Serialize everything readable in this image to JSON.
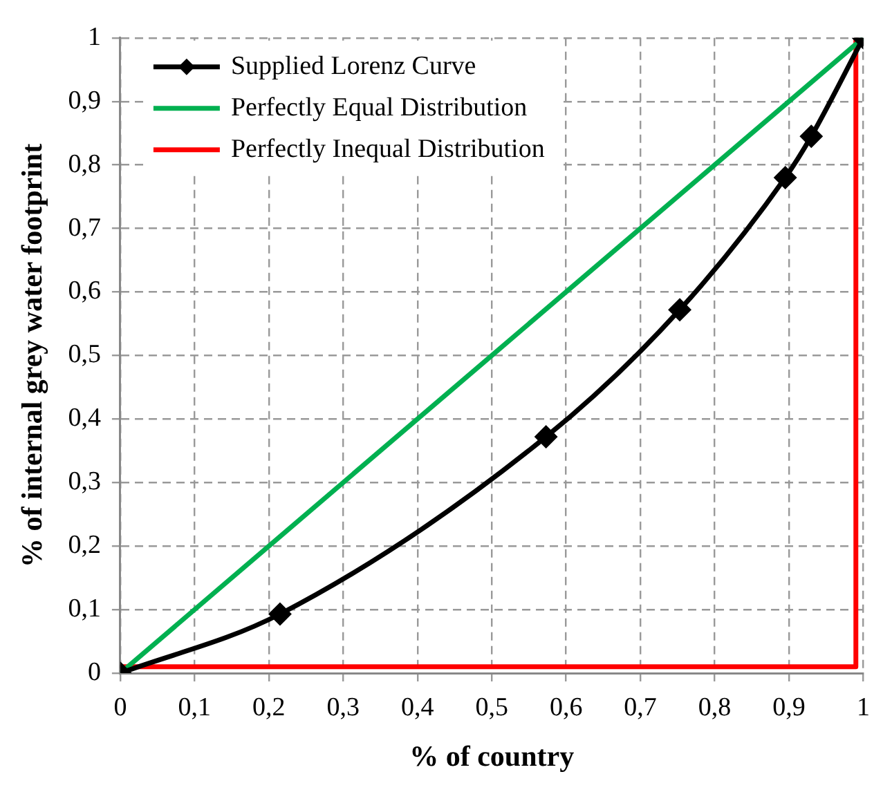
{
  "chart_data": {
    "type": "line",
    "xlabel": "% of country",
    "ylabel": "% of internal grey water footprint",
    "xlim": [
      0,
      1
    ],
    "ylim": [
      0,
      1
    ],
    "xticks": [
      0,
      {
        "value": 0.1,
        "label": "0,1"
      },
      {
        "value": 0.2,
        "label": "0,2"
      },
      {
        "value": 0.3,
        "label": "0,3"
      },
      {
        "value": 0.4,
        "label": "0,4"
      },
      {
        "value": 0.5,
        "label": "0,5"
      },
      {
        "value": 0.6,
        "label": "0,6"
      },
      {
        "value": 0.7,
        "label": "0,7"
      },
      {
        "value": 0.8,
        "label": "0,8"
      },
      {
        "value": 0.9,
        "label": "0,9"
      },
      1
    ],
    "yticks": [
      0,
      {
        "value": 0.1,
        "label": "0,1"
      },
      {
        "value": 0.2,
        "label": "0,2"
      },
      {
        "value": 0.3,
        "label": "0,3"
      },
      {
        "value": 0.4,
        "label": "0,4"
      },
      {
        "value": 0.5,
        "label": "0,5"
      },
      {
        "value": 0.6,
        "label": "0,6"
      },
      {
        "value": 0.7,
        "label": "0,7"
      },
      {
        "value": 0.8,
        "label": "0,8"
      },
      {
        "value": 0.9,
        "label": "0,9"
      },
      1
    ],
    "grid": true,
    "legend": "top left",
    "line_style": "solid",
    "series": [
      {
        "name": "Supplied Lorenz Curve",
        "color": "#000000",
        "marker": "diamond",
        "x": [
          0,
          0.215,
          0.573,
          0.753,
          0.895,
          0.93,
          1
        ],
        "values": [
          0,
          0.093,
          0.372,
          0.572,
          0.78,
          0.845,
          1
        ]
      },
      {
        "name": "Perfectly Equal Distribution",
        "color": "#00b050",
        "marker": "none",
        "x": [
          0,
          1
        ],
        "values": [
          0,
          1
        ]
      },
      {
        "name": "Perfectly Inequal Distribution",
        "color": "#ff0000",
        "marker": "none",
        "x": [
          0,
          0.99,
          0.99
        ],
        "values": [
          0.01,
          0.01,
          1
        ]
      }
    ]
  }
}
